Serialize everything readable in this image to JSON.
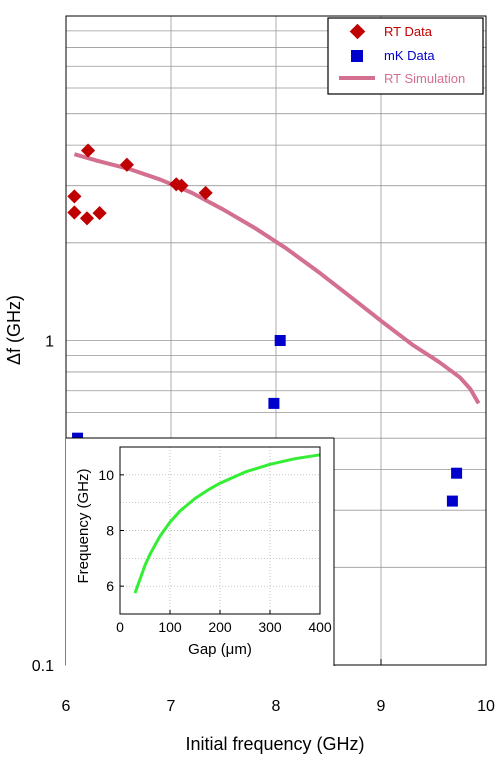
{
  "chart_data": [
    {
      "type": "scatter",
      "xlabel": "Initial frequency (GHz)",
      "ylabel": "Δf (GHz)",
      "xlim": [
        6,
        10
      ],
      "ylim": [
        0.1,
        10
      ],
      "yscale": "log",
      "grid": true,
      "legend_position": "top-right",
      "x_ticks": [
        6,
        7,
        8,
        9,
        10
      ],
      "x_tick_labels": [
        "6",
        "7",
        "8",
        "9",
        "10"
      ],
      "y_ticks": [
        0.1,
        1
      ],
      "y_tick_labels": [
        "0.1",
        "1"
      ],
      "series": [
        {
          "name": "RT Data",
          "kind": "scatter",
          "marker": "diamond",
          "color": "#c00000",
          "points": [
            [
              6.08,
              2.78
            ],
            [
              6.08,
              2.48
            ],
            [
              6.2,
              2.38
            ],
            [
              6.21,
              3.85
            ],
            [
              6.32,
              2.47
            ],
            [
              6.58,
              3.48
            ],
            [
              7.05,
              3.03
            ],
            [
              7.1,
              3.0
            ],
            [
              7.33,
              2.85
            ]
          ]
        },
        {
          "name": "mK Data",
          "kind": "scatter",
          "marker": "square",
          "color": "#0000cc",
          "points": [
            [
              6.11,
              0.5
            ],
            [
              7.98,
              0.64
            ],
            [
              8.04,
              1.0
            ],
            [
              9.68,
              0.32
            ],
            [
              9.72,
              0.39
            ]
          ]
        },
        {
          "name": "RT Simulation",
          "kind": "line",
          "color": "#d4708f",
          "points": [
            [
              6.08,
              3.75
            ],
            [
              6.3,
              3.58
            ],
            [
              6.6,
              3.38
            ],
            [
              6.9,
              3.13
            ],
            [
              7.2,
              2.85
            ],
            [
              7.5,
              2.53
            ],
            [
              7.8,
              2.22
            ],
            [
              8.1,
              1.92
            ],
            [
              8.4,
              1.63
            ],
            [
              8.7,
              1.37
            ],
            [
              9.0,
              1.15
            ],
            [
              9.3,
              0.97
            ],
            [
              9.55,
              0.86
            ],
            [
              9.75,
              0.77
            ],
            [
              9.85,
              0.71
            ],
            [
              9.93,
              0.64
            ]
          ]
        }
      ]
    },
    {
      "type": "line",
      "xlabel": "Gap (μm)",
      "ylabel": "Frequency (GHz)",
      "xlim": [
        0,
        400
      ],
      "ylim": [
        5,
        11
      ],
      "grid": true,
      "x_ticks": [
        0,
        100,
        200,
        300,
        400
      ],
      "x_tick_labels": [
        "0",
        "100",
        "200",
        "300",
        "400"
      ],
      "y_ticks": [
        6,
        8,
        10
      ],
      "y_tick_labels": [
        "6",
        "8",
        "10"
      ],
      "series": [
        {
          "color": "#33ee33",
          "points": [
            [
              30,
              5.75
            ],
            [
              40,
              6.25
            ],
            [
              50,
              6.75
            ],
            [
              60,
              7.15
            ],
            [
              80,
              7.8
            ],
            [
              100,
              8.3
            ],
            [
              120,
              8.7
            ],
            [
              150,
              9.15
            ],
            [
              180,
              9.5
            ],
            [
              200,
              9.7
            ],
            [
              250,
              10.1
            ],
            [
              300,
              10.38
            ],
            [
              350,
              10.58
            ],
            [
              400,
              10.72
            ]
          ]
        }
      ]
    }
  ]
}
